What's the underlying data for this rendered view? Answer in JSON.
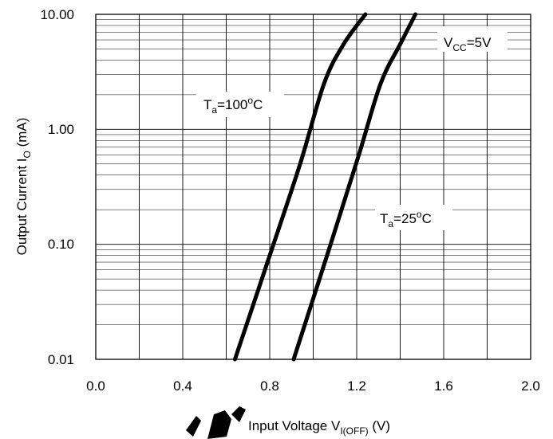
{
  "chart_data": {
    "type": "line",
    "title": "",
    "xlabel": {
      "main": "Input Voltage V",
      "sub": "I(OFF)",
      "unit": " (V)"
    },
    "ylabel": {
      "main": "Output Current I",
      "sub": "O",
      "unit": " (mA)"
    },
    "xlim": [
      0.0,
      2.0
    ],
    "ylim": [
      0.01,
      10.0
    ],
    "yscale": "log",
    "grid": true,
    "x_tick_labels": [
      "0.0",
      "0.4",
      "0.8",
      "1.2",
      "1.6",
      "2.0"
    ],
    "y_tick_labels": [
      "0.01",
      "0.10",
      "1.00",
      "10.00"
    ],
    "annotations": [
      {
        "id": "vcc",
        "main": "V",
        "sub": "CC",
        "rest": "=5V"
      },
      {
        "id": "t100",
        "main": "T",
        "sub": "a",
        "rest": "=100",
        "sup": "o",
        "tail": "C"
      },
      {
        "id": "t25",
        "main": "T",
        "sub": "a",
        "rest": "=25",
        "sup": "o",
        "tail": "C"
      }
    ],
    "series": [
      {
        "id": "t100",
        "x": [
          0.64,
          0.8,
          0.94,
          1.05,
          1.14,
          1.24
        ],
        "y": [
          0.01,
          0.08,
          0.5,
          2.5,
          5.5,
          10.0
        ]
      },
      {
        "id": "t25",
        "x": [
          0.91,
          1.08,
          1.21,
          1.31,
          1.4,
          1.47
        ],
        "y": [
          0.01,
          0.1,
          0.6,
          2.5,
          5.5,
          10.0
        ]
      }
    ]
  }
}
